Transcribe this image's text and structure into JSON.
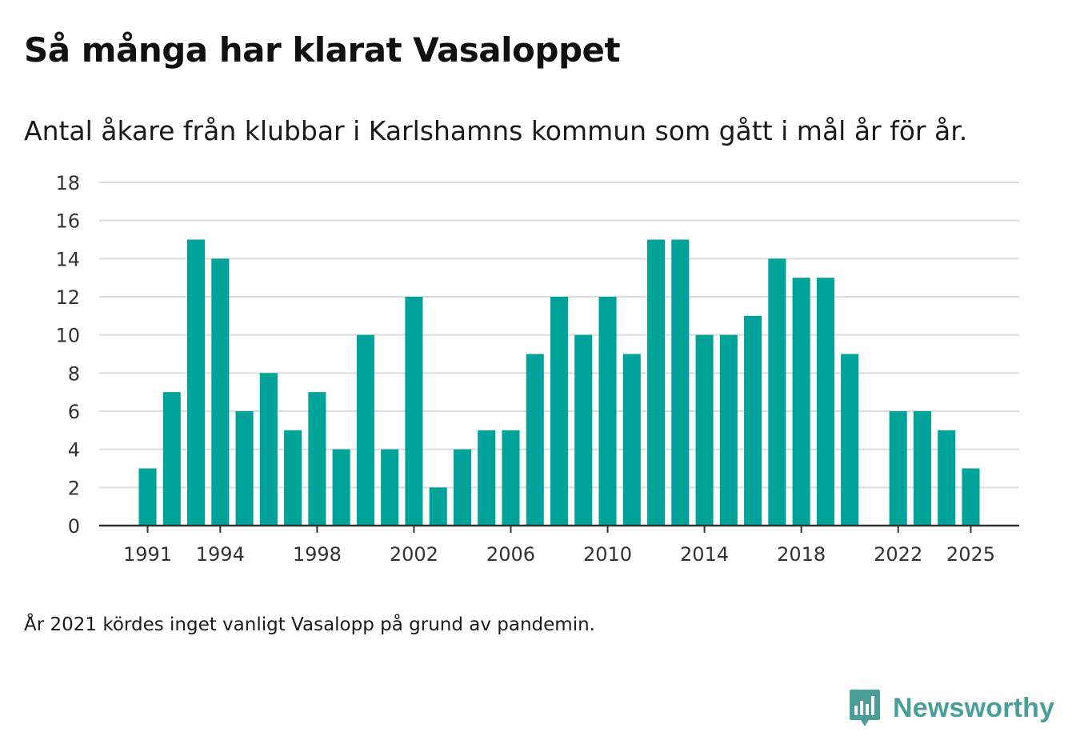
{
  "title": "Så många har klarat Vasaloppet",
  "subtitle": "Antal åkare från klubbar i Karlshamns kommun som gått i mål år för år.",
  "footnote": "År 2021 kördes inget vanligt Vasalopp på grund av pandemin.",
  "brand": {
    "name": "Newsworthy",
    "icon": "newsworthy-logo-icon",
    "color": "#4a9e98"
  },
  "chart_data": {
    "type": "bar",
    "title": "Så många har klarat Vasaloppet",
    "subtitle": "Antal åkare från klubbar i Karlshamns kommun som gått i mål år för år.",
    "xlabel": "",
    "ylabel": "",
    "categories": [
      1991,
      1992,
      1993,
      1994,
      1995,
      1996,
      1997,
      1998,
      1999,
      2000,
      2001,
      2002,
      2003,
      2004,
      2005,
      2006,
      2007,
      2008,
      2009,
      2010,
      2011,
      2012,
      2013,
      2014,
      2015,
      2016,
      2017,
      2018,
      2019,
      2020,
      2021,
      2022,
      2023,
      2024,
      2025
    ],
    "values": [
      3,
      7,
      15,
      14,
      6,
      8,
      5,
      7,
      4,
      10,
      4,
      12,
      2,
      4,
      5,
      5,
      9,
      12,
      10,
      12,
      9,
      15,
      15,
      10,
      10,
      11,
      14,
      13,
      13,
      9,
      null,
      6,
      6,
      5,
      3
    ],
    "x_ticks": [
      "1991",
      "1994",
      "1998",
      "2002",
      "2006",
      "2010",
      "2014",
      "2018",
      "2022",
      "2025"
    ],
    "y_ticks": [
      "0",
      "2",
      "4",
      "6",
      "8",
      "10",
      "12",
      "14",
      "16",
      "18"
    ],
    "ylim": [
      0,
      18
    ],
    "xlim": [
      1989,
      2027
    ],
    "grid": true,
    "bar_color": "#00a39a"
  }
}
